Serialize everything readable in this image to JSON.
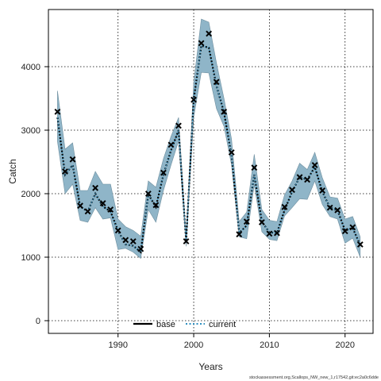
{
  "chart_data": {
    "type": "line",
    "xlabel": "Years",
    "ylabel": "Catch",
    "xlim": [
      1980.8,
      2023.7
    ],
    "ylim": [
      -200,
      4900
    ],
    "xticks": [
      1990,
      2000,
      2010,
      2020
    ],
    "yticks": [
      0,
      1000,
      2000,
      3000,
      4000
    ],
    "grid": true,
    "legend_position": "bottom-center",
    "colors": {
      "band": "#8fb5c8",
      "band_edge": "#6f8f9f",
      "current_line": "#2f8fbf",
      "base_line": "#000000",
      "observed_marker": "#000000"
    },
    "legend": [
      {
        "label": "base",
        "style": "solid",
        "color": "#000000"
      },
      {
        "label": "current",
        "style": "dotted",
        "color": "#2f8fbf"
      }
    ],
    "x": [
      1982,
      1983,
      1984,
      1985,
      1986,
      1987,
      1988,
      1989,
      1990,
      1991,
      1992,
      1993,
      1994,
      1995,
      1996,
      1997,
      1998,
      1999,
      2000,
      2001,
      2002,
      2003,
      2004,
      2005,
      2006,
      2007,
      2008,
      2009,
      2010,
      2011,
      2012,
      2013,
      2014,
      2015,
      2016,
      2017,
      2018,
      2019,
      2020,
      2021,
      2022
    ],
    "observed": [
      3290,
      2350,
      2540,
      1810,
      1720,
      2090,
      1850,
      1750,
      1420,
      1270,
      1250,
      1130,
      2000,
      1820,
      2330,
      2770,
      3070,
      1250,
      3480,
      4370,
      4520,
      3760,
      3290,
      2650,
      1360,
      1560,
      2410,
      1550,
      1370,
      1380,
      1790,
      2060,
      2260,
      2220,
      2450,
      2050,
      1780,
      1740,
      1410,
      1470,
      1200
    ],
    "series": [
      {
        "name": "base",
        "values": [
          3200,
          2300,
          2450,
          1800,
          1720,
          2000,
          1800,
          1720,
          1420,
          1200,
          1180,
          1080,
          1990,
          1790,
          2300,
          2680,
          3000,
          1250,
          3480,
          4330,
          4300,
          3700,
          3280,
          2600,
          1380,
          1500,
          2300,
          1560,
          1390,
          1380,
          1740,
          2030,
          2260,
          2220,
          2420,
          2030,
          1780,
          1740,
          1420,
          1460,
          1190
        ]
      },
      {
        "name": "current",
        "values": [
          3200,
          2300,
          2450,
          1800,
          1720,
          2000,
          1800,
          1720,
          1420,
          1200,
          1180,
          1080,
          1990,
          1790,
          2300,
          2680,
          3000,
          1250,
          3480,
          4330,
          4300,
          3700,
          3280,
          2600,
          1380,
          1500,
          2300,
          1560,
          1390,
          1380,
          1740,
          2030,
          2260,
          2220,
          2420,
          2030,
          1780,
          1740,
          1420,
          1460,
          1190
        ]
      }
    ],
    "band_upper": [
      3620,
      2700,
      2800,
      2050,
      2050,
      2350,
      2150,
      2150,
      1600,
      1480,
      1420,
      1330,
      2200,
      2100,
      2550,
      2900,
      3200,
      1320,
      3750,
      4750,
      4700,
      4060,
      3500,
      2860,
      1560,
      1710,
      2620,
      1750,
      1580,
      1560,
      1980,
      2200,
      2480,
      2380,
      2650,
      2250,
      1950,
      1930,
      1600,
      1640,
      1320
    ],
    "band_lower": [
      2820,
      2000,
      2150,
      1580,
      1550,
      1780,
      1600,
      1620,
      1120,
      1140,
      1080,
      980,
      1750,
      1550,
      2050,
      2450,
      2830,
      1170,
      3200,
      3910,
      3900,
      3340,
      3060,
      2450,
      1320,
      1290,
      2140,
      1400,
      1280,
      1260,
      1650,
      1780,
      1920,
      1910,
      2200,
      1830,
      1640,
      1600,
      1220,
      1300,
      1000
    ]
  },
  "footer": "stockassessment.org,Scallops_NW_new_1,r17542,git:ec2a0c6dde"
}
